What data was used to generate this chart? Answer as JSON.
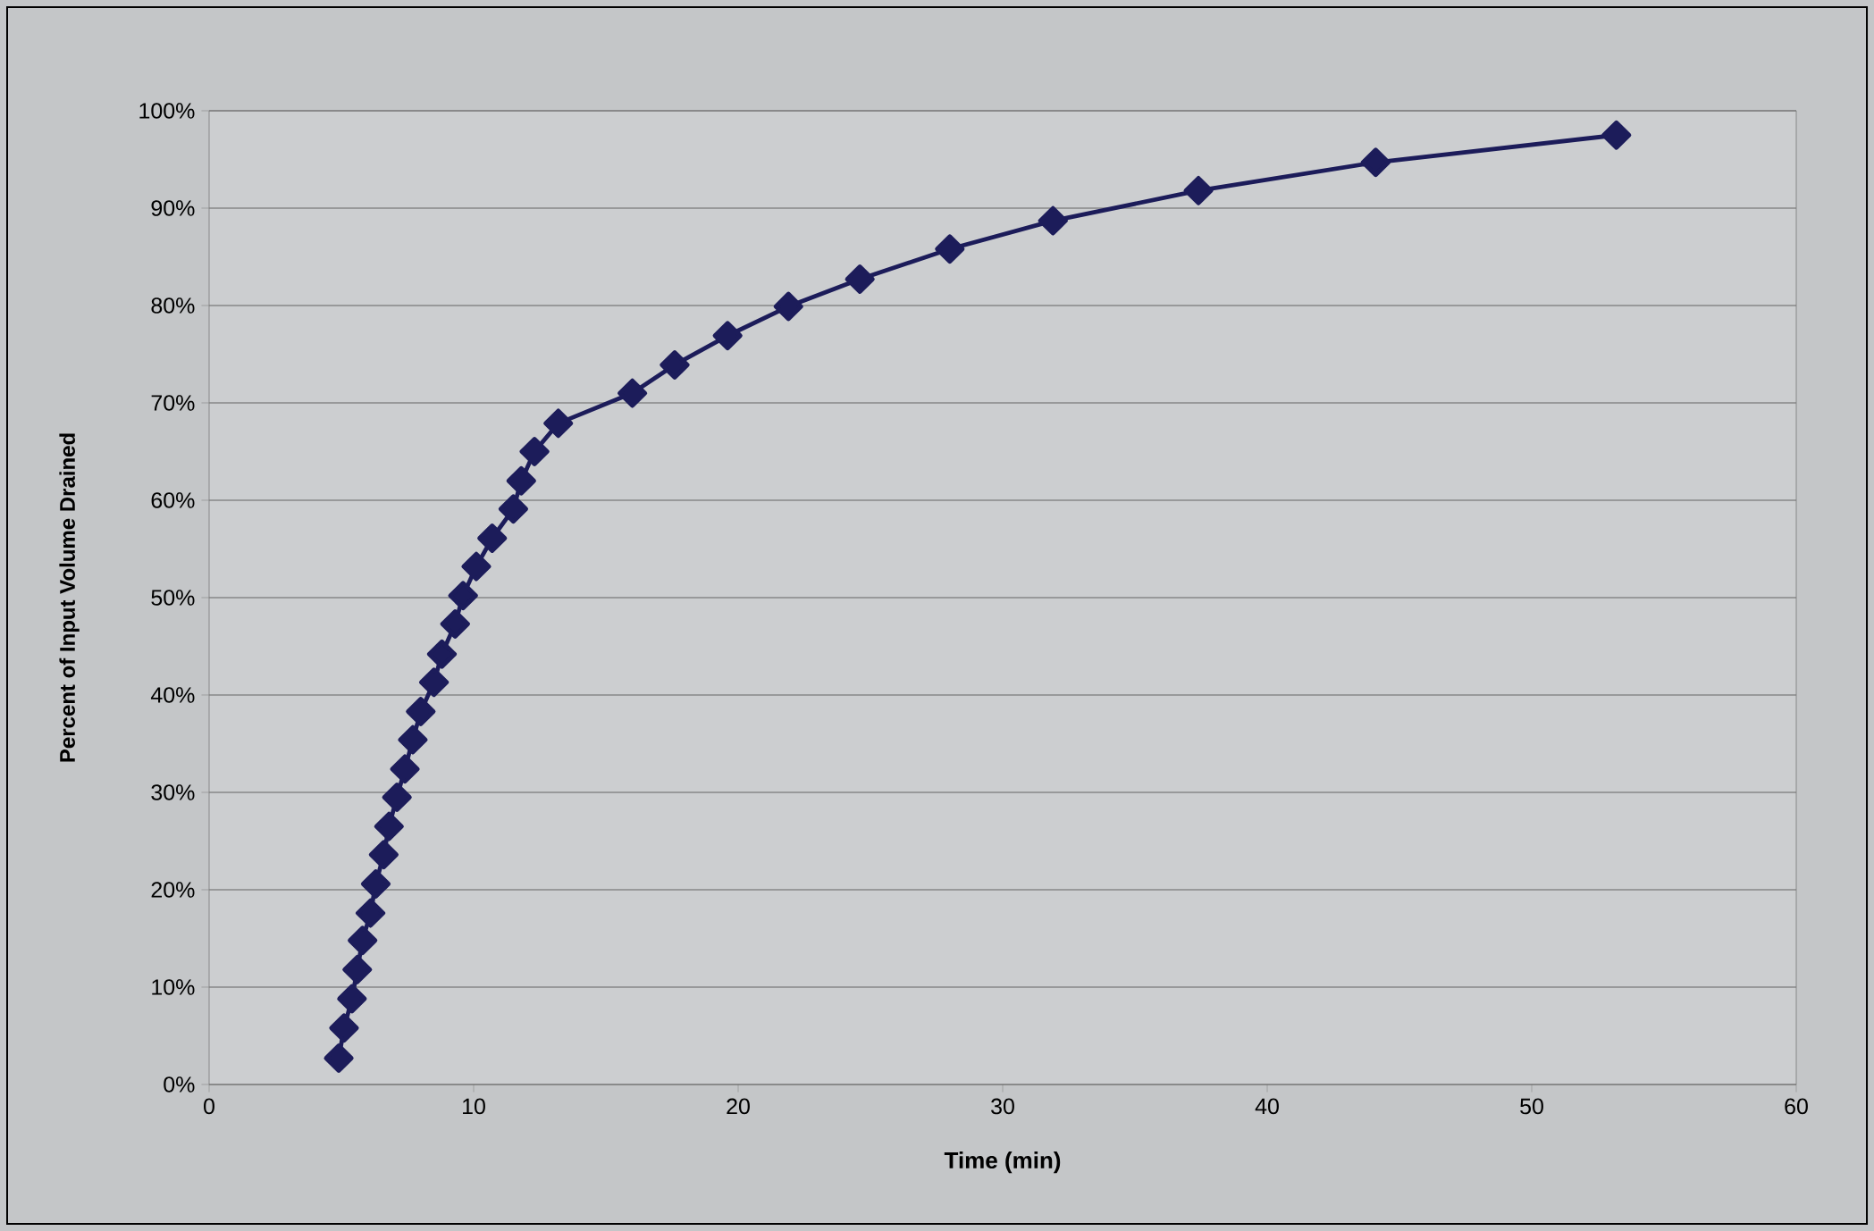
{
  "chart_data": {
    "type": "line",
    "xlabel": "Time (min)",
    "ylabel": "Percent of Input Volume Drained",
    "x": [
      4.9,
      5.1,
      5.4,
      5.6,
      5.8,
      6.1,
      6.3,
      6.6,
      6.8,
      7.1,
      7.4,
      7.7,
      8.0,
      8.5,
      8.8,
      9.3,
      9.6,
      10.1,
      10.7,
      11.5,
      11.8,
      12.3,
      13.2,
      16.0,
      17.6,
      19.6,
      21.9,
      24.6,
      28.0,
      31.9,
      37.4,
      44.1,
      53.2
    ],
    "series": [
      {
        "color": "#1c1c5a",
        "values": [
          2.7,
          5.8,
          8.8,
          11.8,
          14.8,
          17.6,
          20.6,
          23.6,
          26.5,
          29.5,
          32.4,
          35.4,
          38.3,
          41.3,
          44.2,
          47.3,
          50.2,
          53.2,
          56.1,
          59.1,
          62.0,
          65.0,
          67.9,
          71.0,
          73.9,
          76.9,
          79.9,
          82.7,
          85.8,
          88.7,
          91.8,
          94.7,
          97.5
        ]
      }
    ],
    "xlim": [
      0,
      60
    ],
    "xticks": [
      0,
      10,
      20,
      30,
      40,
      50,
      60
    ],
    "ylim": [
      0,
      100
    ],
    "yticks": [
      {
        "value": 0,
        "label": "0%"
      },
      {
        "value": 10,
        "label": "10%"
      },
      {
        "value": 20,
        "label": "20%"
      },
      {
        "value": 30,
        "label": "30%"
      },
      {
        "value": 40,
        "label": "40%"
      },
      {
        "value": 50,
        "label": "50%"
      },
      {
        "value": 60,
        "label": "60%"
      },
      {
        "value": 70,
        "label": "70%"
      },
      {
        "value": 80,
        "label": "80%"
      },
      {
        "value": 90,
        "label": "90%"
      },
      {
        "value": 100,
        "label": "100%"
      }
    ],
    "grid": "y",
    "marker": "diamond",
    "line_style": "solid"
  }
}
